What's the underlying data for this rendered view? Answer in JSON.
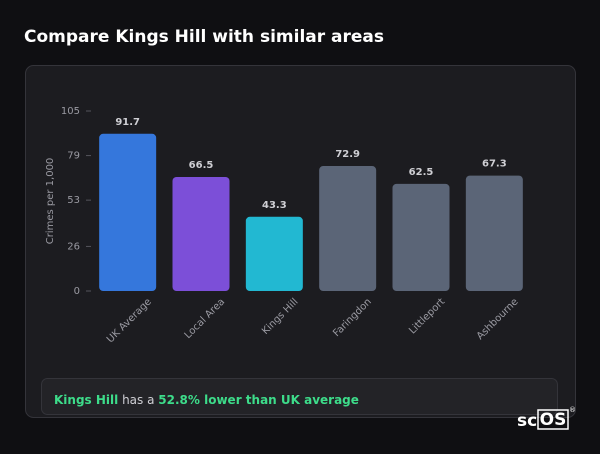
{
  "chart_data": {
    "type": "bar",
    "title": "Compare Kings Hill with similar areas",
    "y_label": "Crimes per 1,000",
    "categories": [
      "UK Average",
      "Local Area",
      "Kings Hill",
      "Faringdon",
      "Littleport",
      "Ashbourne"
    ],
    "values": [
      91.7,
      66.5,
      43.3,
      72.9,
      62.5,
      67.3
    ],
    "colors": [
      "#3577dc",
      "#7c4fd8",
      "#22b8d2",
      "#5b6577",
      "#5b6577",
      "#5b6577"
    ],
    "ylim": [
      0,
      105
    ],
    "yticks": [
      0,
      26,
      53,
      79,
      105
    ],
    "grid": false
  },
  "summary": {
    "area": "Kings Hill",
    "text": "has a",
    "highlight": "52.8% lower than UK average"
  },
  "logo": {
    "prefix": "sc",
    "boxed": "OS",
    "mark": "®"
  }
}
